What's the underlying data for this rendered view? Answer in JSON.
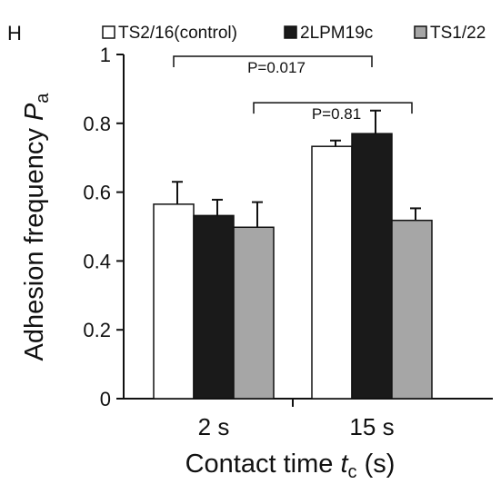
{
  "panel_label": "H",
  "chart_data": {
    "type": "bar",
    "categories": [
      "2 s",
      "15 s"
    ],
    "series": [
      {
        "name": "TS2/16(control)",
        "values": [
          0.565,
          0.733
        ],
        "errors": [
          0.065,
          0.017
        ],
        "color": "#ffffff"
      },
      {
        "name": "2LPM19c",
        "values": [
          0.532,
          0.77
        ],
        "errors": [
          0.046,
          0.067
        ],
        "color": "#1a1a1a"
      },
      {
        "name": "TS1/22",
        "values": [
          0.498,
          0.518
        ],
        "errors": [
          0.073,
          0.035
        ],
        "color": "#a6a6a6"
      }
    ],
    "xlabel_main": "Contact time ",
    "xlabel_symbol": "t",
    "xlabel_sub": "c",
    "xlabel_unit": " (s)",
    "ylabel_main": "Adhesion frequency ",
    "ylabel_symbol": "P",
    "ylabel_sub": "a",
    "ylim": [
      0,
      1
    ],
    "yticks": [
      "0",
      "0.2",
      "0.4",
      "0.6",
      "0.8",
      "1"
    ],
    "legend_position": "top",
    "annotations": [
      {
        "label": "P=0.017",
        "from_category": 0,
        "from_series": 0,
        "to_category": 1,
        "to_series": 1,
        "level": 1.0
      },
      {
        "label": "P=0.81",
        "from_category": 0,
        "from_series": 2,
        "to_category": 1,
        "to_series": 2,
        "level": 0.865
      }
    ]
  }
}
